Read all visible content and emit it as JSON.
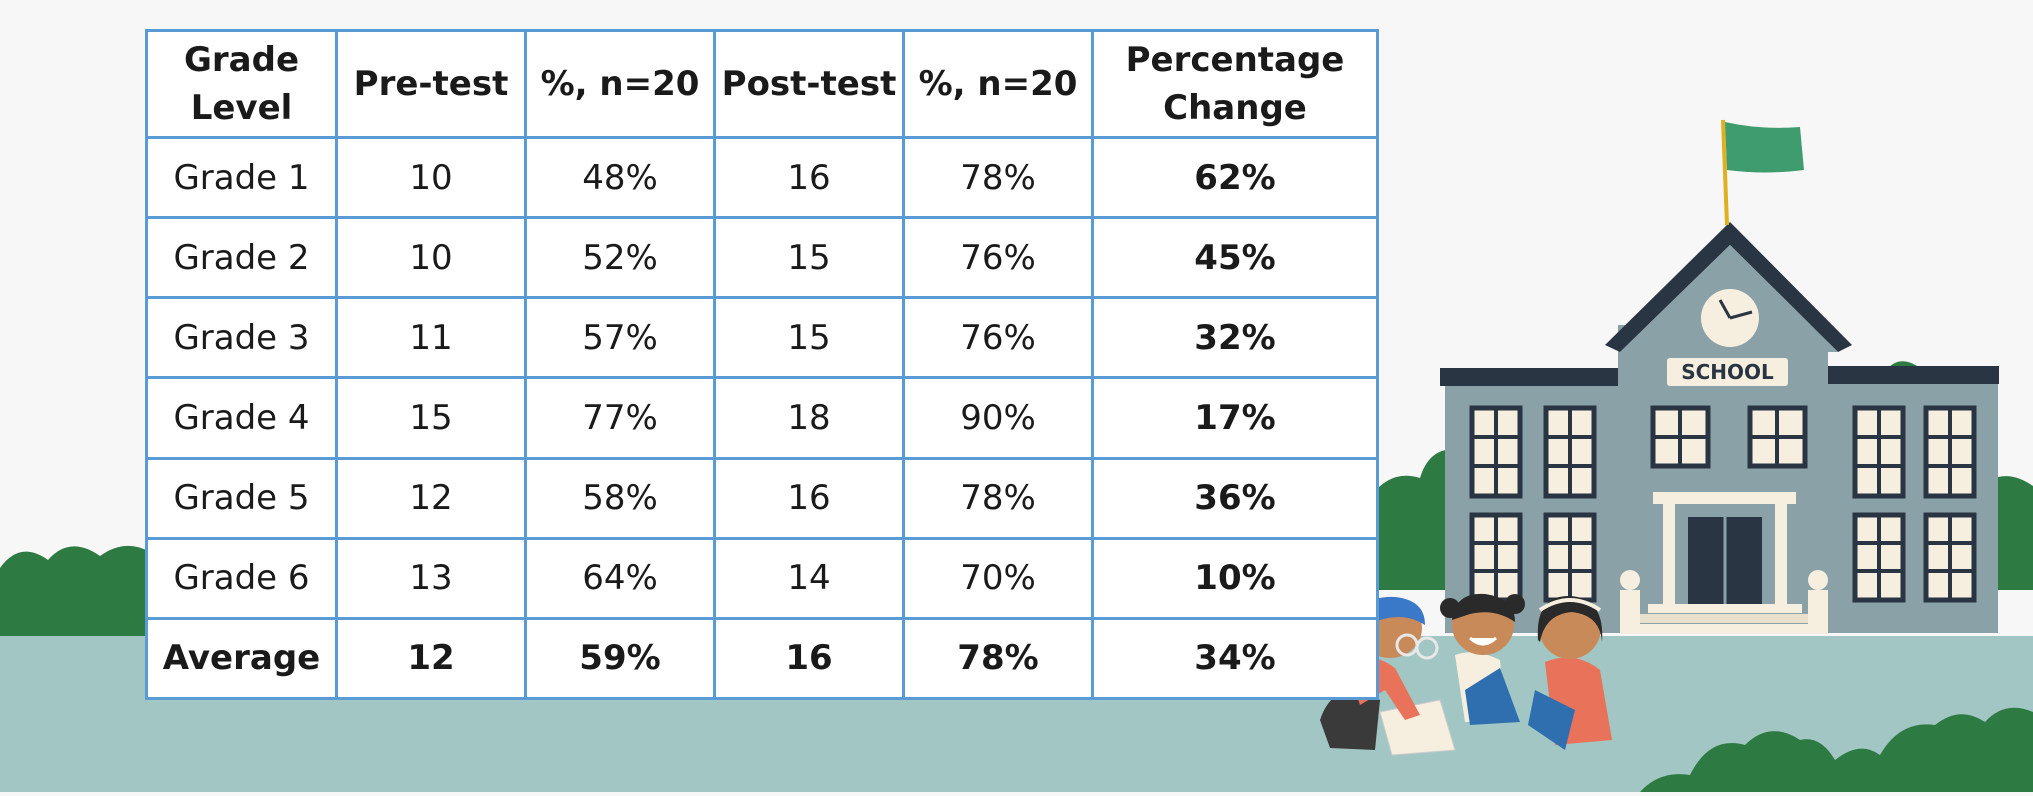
{
  "table": {
    "headers": [
      {
        "line1": "Grade",
        "line2": "Level"
      },
      {
        "line1": "Pre-test",
        "line2": ""
      },
      {
        "line1": "%, n=20",
        "line2": ""
      },
      {
        "line1": "Post-test",
        "line2": ""
      },
      {
        "line1": "%, n=20",
        "line2": ""
      },
      {
        "line1": "Percentage",
        "line2": "Change"
      }
    ],
    "rows": [
      {
        "grade": "Grade 1",
        "pre": "10",
        "pre_pct": "48%",
        "post": "16",
        "post_pct": "78%",
        "change": "62%"
      },
      {
        "grade": "Grade 2",
        "pre": "10",
        "pre_pct": "52%",
        "post": "15",
        "post_pct": "76%",
        "change": "45%"
      },
      {
        "grade": "Grade 3",
        "pre": "11",
        "pre_pct": "57%",
        "post": "15",
        "post_pct": "76%",
        "change": "32%"
      },
      {
        "grade": "Grade 4",
        "pre": "15",
        "pre_pct": "77%",
        "post": "18",
        "post_pct": "90%",
        "change": "17%"
      },
      {
        "grade": "Grade 5",
        "pre": "12",
        "pre_pct": "58%",
        "post": "16",
        "post_pct": "78%",
        "change": "36%"
      },
      {
        "grade": "Grade 6",
        "pre": "13",
        "pre_pct": "64%",
        "post": "14",
        "post_pct": "70%",
        "change": "10%"
      }
    ],
    "average": {
      "grade": "Average",
      "pre": "12",
      "pre_pct": "59%",
      "post": "16",
      "post_pct": "78%",
      "change": "34%"
    }
  },
  "illustration": {
    "sign_text": "SCHOOL",
    "colors": {
      "ground": "#a2c6c3",
      "bush": "#2e7a43",
      "building": "#8aa1a8",
      "roof": "#2a3544",
      "flag": "#3e9c6e",
      "table_border": "#5b9bd5"
    }
  }
}
